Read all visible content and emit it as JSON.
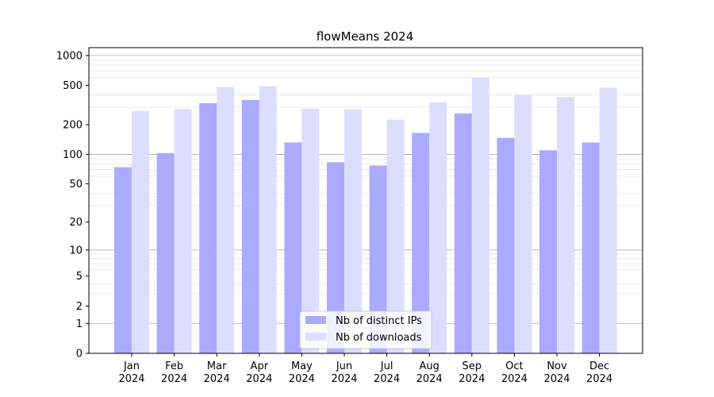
{
  "chart_data": {
    "type": "bar",
    "title": "flowMeans 2024",
    "xlabel": "",
    "ylabel": "",
    "yscale": "log1p",
    "ylim": [
      0,
      1200
    ],
    "yticks": [
      0,
      1,
      2,
      5,
      10,
      20,
      50,
      100,
      200,
      500,
      1000
    ],
    "grid": true,
    "legend_position": "bottom-center",
    "categories": [
      "Jan\n2024",
      "Feb\n2024",
      "Mar\n2024",
      "Apr\n2024",
      "May\n2024",
      "Jun\n2024",
      "Jul\n2024",
      "Aug\n2024",
      "Sep\n2024",
      "Oct\n2024",
      "Nov\n2024",
      "Dec\n2024"
    ],
    "series": [
      {
        "name": "Nb of distinct IPs",
        "color": "#aaaaff",
        "values": [
          74,
          103,
          330,
          355,
          132,
          83,
          77,
          165,
          260,
          147,
          110,
          132
        ]
      },
      {
        "name": "Nb of downloads",
        "color": "#ddddff",
        "values": [
          275,
          288,
          480,
          490,
          290,
          285,
          225,
          335,
          600,
          400,
          380,
          475
        ]
      }
    ]
  }
}
